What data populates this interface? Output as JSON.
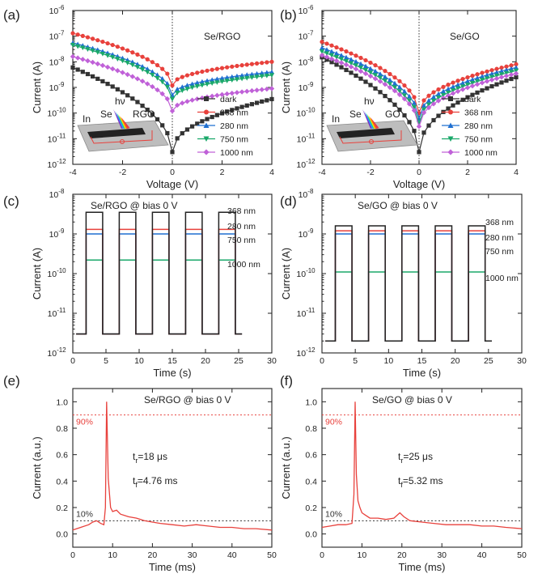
{
  "chart_data": [
    {
      "panel": "(a)",
      "type": "line",
      "scale": "log-y",
      "annotation": "Se/RGO",
      "xlabel": "Voltage (V)",
      "ylabel": "Current (A)",
      "xlim": [
        -4,
        4
      ],
      "ylim_exp": [
        -12,
        -6
      ],
      "xticks": [
        -4,
        -2,
        0,
        2,
        4
      ],
      "yticks_exp": [
        -12,
        -11,
        -10,
        -9,
        -8,
        -7,
        -6
      ],
      "legend_position": "lower-right",
      "inset": {
        "labels": [
          "hν",
          "Se",
          "RGO",
          "In"
        ],
        "material": "RGO"
      },
      "series": [
        {
          "name": "dark",
          "color": "#333333",
          "marker": "square",
          "left": 6e-09,
          "min": 3e-12,
          "right": 3.5e-10
        },
        {
          "name": "368 nm",
          "color": "#e8413c",
          "marker": "circle",
          "left": 1.3e-07,
          "min": 1.2e-09,
          "right": 1e-08
        },
        {
          "name": "280 nm",
          "color": "#1f6fd0",
          "marker": "triangle-up",
          "left": 5.5e-08,
          "min": 5e-10,
          "right": 4e-09
        },
        {
          "name": "750 nm",
          "color": "#1aa86a",
          "marker": "triangle-down",
          "left": 4.5e-08,
          "min": 3.5e-10,
          "right": 3e-09
        },
        {
          "name": "1000 nm",
          "color": "#c061d8",
          "marker": "diamond",
          "left": 1.6e-08,
          "min": 1.2e-10,
          "right": 9e-10
        }
      ]
    },
    {
      "panel": "(b)",
      "type": "line",
      "scale": "log-y",
      "annotation": "Se/GO",
      "xlabel": "Voltage (V)",
      "ylabel": "Current (A)",
      "xlim": [
        -4,
        4
      ],
      "ylim_exp": [
        -12,
        -6
      ],
      "xticks": [
        -4,
        -2,
        0,
        2,
        4
      ],
      "yticks_exp": [
        -12,
        -11,
        -10,
        -9,
        -8,
        -7,
        -6
      ],
      "legend_position": "lower-right",
      "inset": {
        "labels": [
          "hν",
          "Se",
          "GO",
          "In"
        ],
        "material": "GO"
      },
      "series": [
        {
          "name": "dark",
          "color": "#333333",
          "marker": "square",
          "left": 1.5e-08,
          "min": 3e-12,
          "right": 2.5e-09
        },
        {
          "name": "368 nm",
          "color": "#e8413c",
          "marker": "circle",
          "left": 6e-08,
          "min": 1e-10,
          "right": 8e-09
        },
        {
          "name": "280 nm",
          "color": "#1f6fd0",
          "marker": "triangle-up",
          "left": 3.5e-08,
          "min": 6e-11,
          "right": 6e-09
        },
        {
          "name": "750 nm",
          "color": "#1aa86a",
          "marker": "triangle-down",
          "left": 2.5e-08,
          "min": 4e-11,
          "right": 4.5e-09
        },
        {
          "name": "1000 nm",
          "color": "#c061d8",
          "marker": "diamond",
          "left": 1.8e-08,
          "min": 3e-11,
          "right": 3.5e-09
        }
      ]
    },
    {
      "panel": "(c)",
      "type": "line",
      "scale": "log-y",
      "annotation": "Se/RGO @ bias 0 V",
      "xlabel": "Time (s)",
      "ylabel": "Current (A)",
      "xlim": [
        0,
        30
      ],
      "ylim_exp": [
        -12,
        -8
      ],
      "xticks": [
        0,
        5,
        10,
        15,
        20,
        25,
        30
      ],
      "yticks_exp": [
        -12,
        -11,
        -10,
        -9,
        -8
      ],
      "pulse_starts": [
        2,
        7,
        12,
        17,
        22
      ],
      "pulse_width": 2.5,
      "end_time": 25.5,
      "series": [
        {
          "name": "368 nm",
          "color": "#222222",
          "off": 3e-12,
          "on": 3.5e-09
        },
        {
          "name": "280 nm",
          "color": "#e8413c",
          "off": 3e-12,
          "on": 1.3e-09
        },
        {
          "name": "750 nm",
          "color": "#1f6fd0",
          "off": 3e-12,
          "on": 1e-09
        },
        {
          "name": "1000 nm",
          "color": "#1aa86a",
          "off": 3e-12,
          "on": 2.2e-10
        }
      ]
    },
    {
      "panel": "(d)",
      "type": "line",
      "scale": "log-y",
      "annotation": "Se/GO @ bias 0 V",
      "xlabel": "Time (s)",
      "ylabel": "Current (A)",
      "xlim": [
        0,
        30
      ],
      "ylim_exp": [
        -12,
        -8
      ],
      "xticks": [
        0,
        5,
        10,
        15,
        20,
        25,
        30
      ],
      "yticks_exp": [
        -12,
        -11,
        -10,
        -9,
        -8
      ],
      "pulse_starts": [
        2,
        7,
        12,
        17,
        22
      ],
      "pulse_width": 2.5,
      "end_time": 25.5,
      "series": [
        {
          "name": "368 nm",
          "color": "#222222",
          "off": 2e-12,
          "on": 1.6e-09
        },
        {
          "name": "280 nm",
          "color": "#e8413c",
          "off": 2e-12,
          "on": 1.2e-09
        },
        {
          "name": "750 nm",
          "color": "#1f6fd0",
          "off": 2e-12,
          "on": 1e-09
        },
        {
          "name": "1000 nm",
          "color": "#1aa86a",
          "off": 2e-12,
          "on": 1.1e-10
        }
      ]
    },
    {
      "panel": "(e)",
      "type": "line",
      "scale": "linear",
      "annotation": "Se/RGO @ bias 0 V",
      "rise_label": "=18 μs",
      "fall_label": "=4.76 ms",
      "xlabel": "Time (ms)",
      "ylabel": "Current (a.u.)",
      "xlim": [
        0,
        50
      ],
      "ylim": [
        -0.1,
        1.1
      ],
      "xticks": [
        0,
        10,
        20,
        30,
        40,
        50
      ],
      "yticks": [
        0.0,
        0.2,
        0.4,
        0.6,
        0.8,
        1.0
      ],
      "ref_lines": [
        {
          "label": "90%",
          "y": 0.9,
          "color": "#e8413c"
        },
        {
          "label": "10%",
          "y": 0.1,
          "color": "#333333"
        }
      ],
      "color": "#e8413c",
      "x": [
        0,
        2,
        4,
        5,
        6,
        7,
        7.8,
        8.2,
        8.5,
        8.9,
        9.5,
        10,
        11,
        12,
        14,
        16,
        18,
        20,
        22,
        25,
        28,
        31,
        34,
        37,
        40,
        43,
        46,
        50
      ],
      "y": [
        0.03,
        0.05,
        0.07,
        0.09,
        0.1,
        0.08,
        0.07,
        0.2,
        1.0,
        0.42,
        0.2,
        0.17,
        0.18,
        0.15,
        0.13,
        0.12,
        0.1,
        0.09,
        0.08,
        0.07,
        0.06,
        0.07,
        0.06,
        0.05,
        0.05,
        0.04,
        0.04,
        0.03
      ]
    },
    {
      "panel": "(f)",
      "type": "line",
      "scale": "linear",
      "annotation": "Se/GO @ bias 0 V",
      "rise_label": "=25 μs",
      "fall_label": "=5.32 ms",
      "xlabel": "Time (ms)",
      "ylabel": "Current (a.u.)",
      "xlim": [
        0,
        50
      ],
      "ylim": [
        -0.1,
        1.1
      ],
      "xticks": [
        0,
        10,
        20,
        30,
        40,
        50
      ],
      "yticks": [
        0.0,
        0.2,
        0.4,
        0.6,
        0.8,
        1.0
      ],
      "ref_lines": [
        {
          "label": "90%",
          "y": 0.9,
          "color": "#e8413c"
        },
        {
          "label": "10%",
          "y": 0.1,
          "color": "#333333"
        }
      ],
      "color": "#e8413c",
      "x": [
        0,
        2,
        4,
        6,
        7.5,
        8,
        8.3,
        8.6,
        9.0,
        9.5,
        10,
        11,
        12,
        14,
        16,
        18,
        19.5,
        20.5,
        22,
        25,
        28,
        31,
        34,
        37,
        40,
        43,
        46,
        50
      ],
      "y": [
        0.05,
        0.06,
        0.07,
        0.07,
        0.08,
        0.3,
        1.0,
        0.45,
        0.25,
        0.2,
        0.16,
        0.14,
        0.12,
        0.12,
        0.11,
        0.12,
        0.16,
        0.13,
        0.1,
        0.09,
        0.08,
        0.07,
        0.07,
        0.07,
        0.06,
        0.06,
        0.05,
        0.04
      ]
    }
  ]
}
